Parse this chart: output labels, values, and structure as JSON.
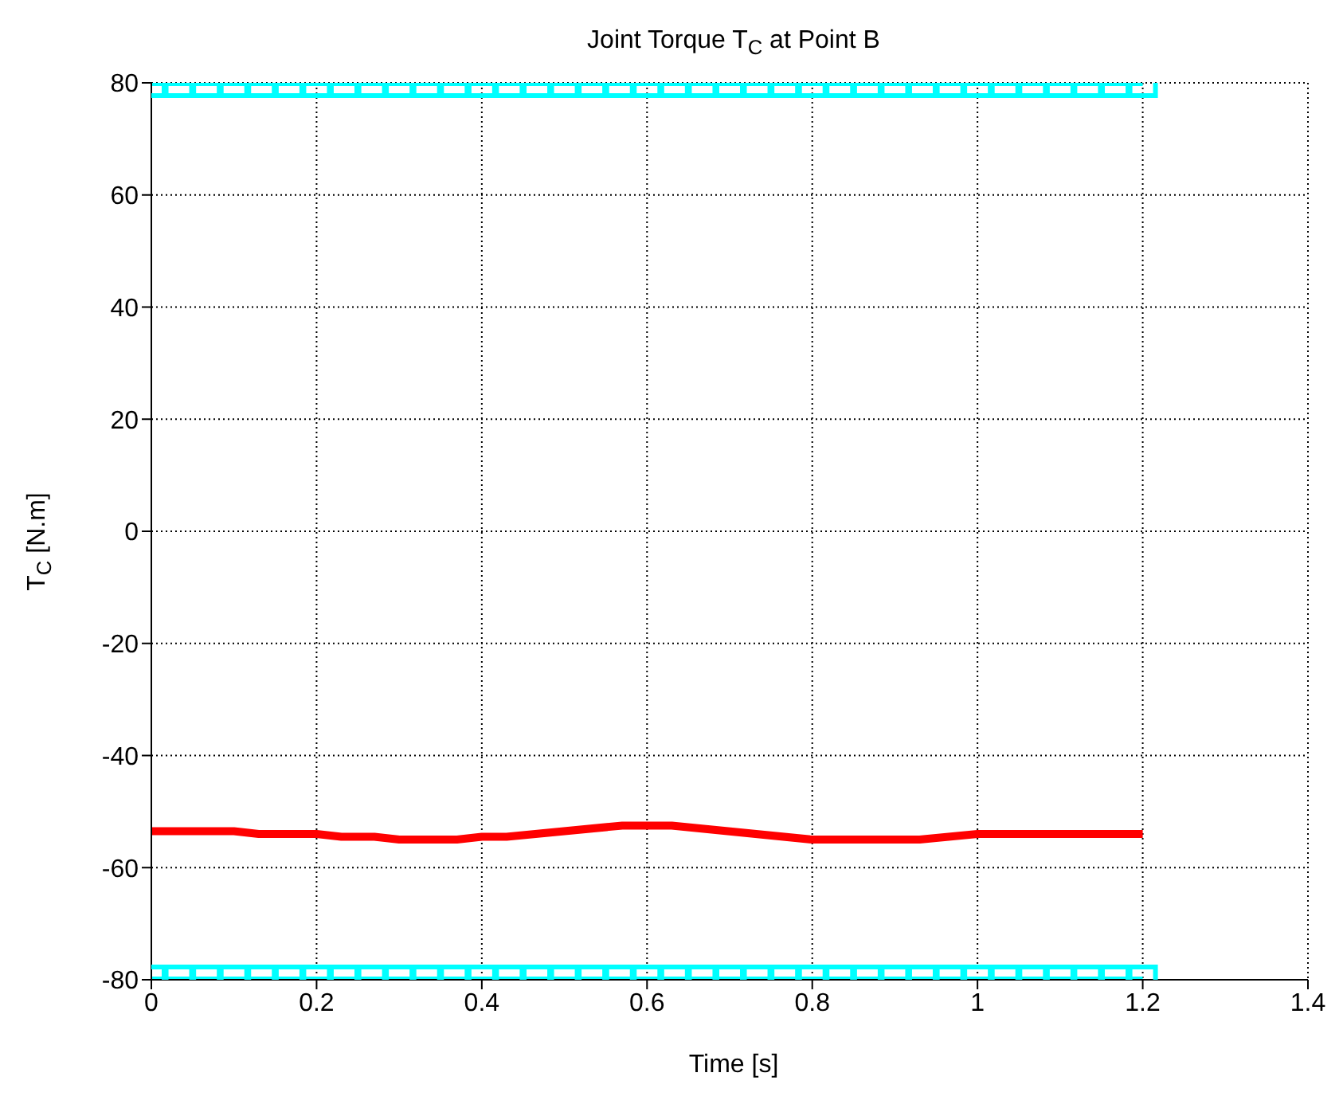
{
  "chart_data": {
    "type": "line",
    "title": "Joint Torque T$_{C}$ at Point B",
    "xlabel": "Time [s]",
    "ylabel": "T$_{C}$  [N.m]",
    "xlim": [
      0,
      1.4
    ],
    "xticks": [
      0,
      0.2,
      0.4,
      0.6,
      0.8,
      1,
      1.2,
      1.4
    ],
    "ylim": [
      -80,
      80
    ],
    "yticks": [
      -80,
      -60,
      -40,
      -20,
      0,
      20,
      40,
      60,
      80
    ],
    "grid": true,
    "series": [
      {
        "color": "#ff0000",
        "marker": "none",
        "x": [
          0,
          0.1,
          0.13,
          0.2,
          0.23,
          0.27,
          0.3,
          0.37,
          0.4,
          0.43,
          0.57,
          0.63,
          0.8,
          0.93,
          1.0,
          1.2
        ],
        "values": [
          -53.5,
          -53.5,
          -54,
          -54,
          -54.5,
          -54.5,
          -55,
          -55,
          -54.5,
          -54.5,
          -52.5,
          -52.5,
          -55,
          -55,
          -54,
          -54
        ]
      },
      {
        "color": "#00ffff",
        "marker": "square",
        "x": [
          0,
          0.0333,
          0.0667,
          0.1,
          0.1333,
          0.1667,
          0.2,
          0.2333,
          0.2667,
          0.3,
          0.3333,
          0.3667,
          0.4,
          0.4333,
          0.4667,
          0.5,
          0.5333,
          0.5667,
          0.6,
          0.6333,
          0.6667,
          0.7,
          0.7333,
          0.7667,
          0.8,
          0.8333,
          0.8667,
          0.9,
          0.9333,
          0.9667,
          1.0,
          1.0333,
          1.0667,
          1.1,
          1.1333,
          1.1667,
          1.2
        ],
        "values": [
          80,
          80,
          80,
          80,
          80,
          80,
          80,
          80,
          80,
          80,
          80,
          80,
          80,
          80,
          80,
          80,
          80,
          80,
          80,
          80,
          80,
          80,
          80,
          80,
          80,
          80,
          80,
          80,
          80,
          80,
          80,
          80,
          80,
          80,
          80,
          80,
          80
        ]
      },
      {
        "color": "#00ffff",
        "marker": "square",
        "x": [
          0,
          0.0333,
          0.0667,
          0.1,
          0.1333,
          0.1667,
          0.2,
          0.2333,
          0.2667,
          0.3,
          0.3333,
          0.3667,
          0.4,
          0.4333,
          0.4667,
          0.5,
          0.5333,
          0.5667,
          0.6,
          0.6333,
          0.6667,
          0.7,
          0.7333,
          0.7667,
          0.8,
          0.8333,
          0.8667,
          0.9,
          0.9333,
          0.9667,
          1.0,
          1.0333,
          1.0667,
          1.1,
          1.1333,
          1.1667,
          1.2
        ],
        "values": [
          -80,
          -80,
          -80,
          -80,
          -80,
          -80,
          -80,
          -80,
          -80,
          -80,
          -80,
          -80,
          -80,
          -80,
          -80,
          -80,
          -80,
          -80,
          -80,
          -80,
          -80,
          -80,
          -80,
          -80,
          -80,
          -80,
          -80,
          -80,
          -80,
          -80,
          -80,
          -80,
          -80,
          -80,
          -80,
          -80,
          -80
        ]
      }
    ]
  }
}
